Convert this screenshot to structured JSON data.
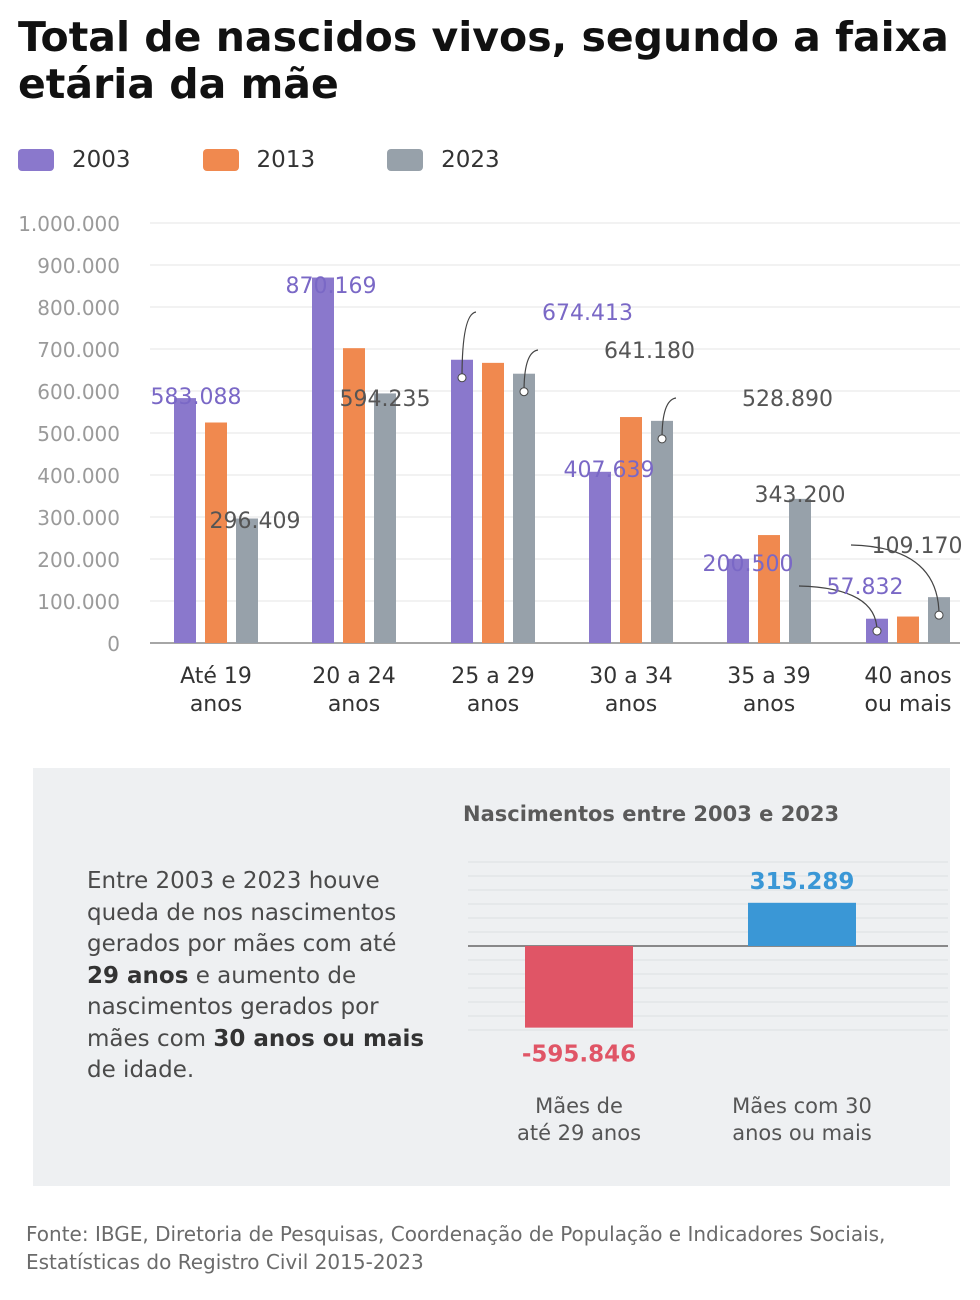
{
  "header": {
    "title": "Total de nascidos vivos, segundo a faixa etária da mãe"
  },
  "legend": [
    {
      "label": "2003",
      "color": "#8a78cc"
    },
    {
      "label": "2013",
      "color": "#f0894f"
    },
    {
      "label": "2023",
      "color": "#97a1aa"
    }
  ],
  "chart_data": [
    {
      "type": "bar",
      "title": "Total de nascidos vivos, segundo a faixa etária da mãe",
      "categories": [
        [
          "Até 19",
          "anos"
        ],
        [
          "20 a 24",
          "anos"
        ],
        [
          "25 a 29",
          "anos"
        ],
        [
          "30 a 34",
          "anos"
        ],
        [
          "35 a 39",
          "anos"
        ],
        [
          "40 anos",
          "ou mais"
        ]
      ],
      "series": [
        {
          "name": "2003",
          "color": "#8a78cc",
          "values": [
            583088,
            870169,
            674413,
            407639,
            200500,
            57832
          ]
        },
        {
          "name": "2013",
          "color": "#f0894f",
          "values": [
            525000,
            702000,
            667000,
            538000,
            257000,
            63000
          ]
        },
        {
          "name": "2023",
          "color": "#97a1aa",
          "values": [
            296409,
            594235,
            641180,
            528890,
            343200,
            109170
          ]
        }
      ],
      "data_labels": [
        {
          "series": 0,
          "index": 0,
          "text": "583.088"
        },
        {
          "series": 0,
          "index": 1,
          "text": "870.169"
        },
        {
          "series": 0,
          "index": 2,
          "text": "674.413"
        },
        {
          "series": 0,
          "index": 3,
          "text": "407.639"
        },
        {
          "series": 0,
          "index": 4,
          "text": "200.500"
        },
        {
          "series": 0,
          "index": 5,
          "text": "57.832"
        },
        {
          "series": 2,
          "index": 0,
          "text": "296.409"
        },
        {
          "series": 2,
          "index": 1,
          "text": "594.235"
        },
        {
          "series": 2,
          "index": 2,
          "text": "641.180"
        },
        {
          "series": 2,
          "index": 3,
          "text": "528.890"
        },
        {
          "series": 2,
          "index": 4,
          "text": "343.200"
        },
        {
          "series": 2,
          "index": 5,
          "text": "109.170"
        }
      ],
      "yticks": [
        "0",
        "100.000",
        "200.000",
        "300.000",
        "400.000",
        "500.000",
        "600.000",
        "700.000",
        "800.000",
        "900.000",
        "1.000.000"
      ],
      "ylim": [
        0,
        1000000
      ],
      "grid": true
    },
    {
      "type": "bar",
      "title": "Nascimentos entre 2003 e 2023",
      "categories": [
        [
          "Mães de",
          "até 29 anos"
        ],
        [
          "Mães com 30",
          "anos ou mais"
        ]
      ],
      "values": [
        -595846,
        315289
      ],
      "labels": [
        "-595.846",
        "315.289"
      ],
      "colors": [
        "#e05566",
        "#3a97d6"
      ],
      "ylim": [
        -720000,
        720000
      ],
      "grid": true
    }
  ],
  "panel": {
    "text": [
      {
        "t": "Entre 2003 e 2023 houve queda de nos nascimentos gerados por mães com até ",
        "b": false
      },
      {
        "t": "29 anos",
        "b": true
      },
      {
        "t": " e aumento de nascimentos gerados por mães com ",
        "b": false
      },
      {
        "t": "30 anos ou mais",
        "b": true
      },
      {
        "t": " de idade.",
        "b": false
      }
    ]
  },
  "footer": {
    "source": "Fonte: IBGE, Diretoria de Pesquisas, Coordenação de População e Indicadores Sociais, Estatísticas do Registro Civil 2015-2023"
  }
}
